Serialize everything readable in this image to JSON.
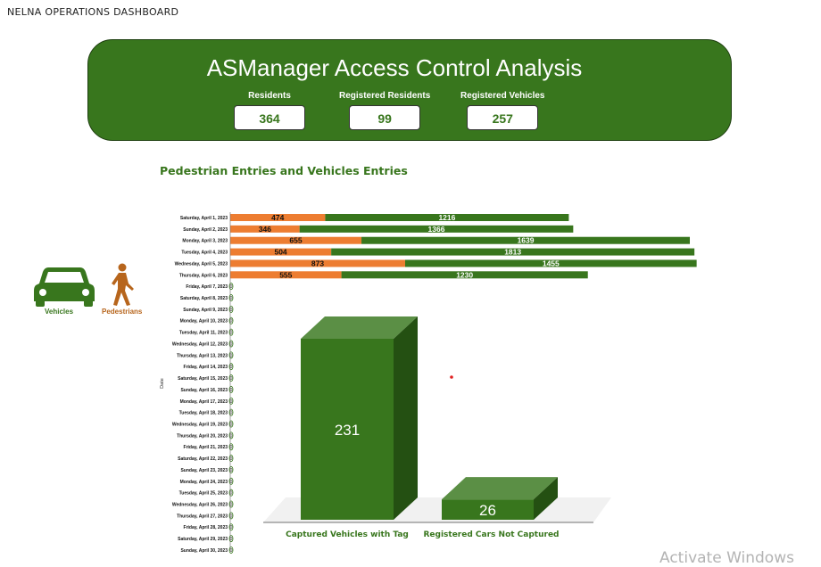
{
  "app_title": "NELNA OPERATIONS DASHBOARD",
  "banner": {
    "title": "ASManager Access Control Analysis",
    "kpis": [
      {
        "label": "Residents",
        "value": "364"
      },
      {
        "label": "Registered Residents",
        "value": "99"
      },
      {
        "label": "Registered Vehicles",
        "value": "257"
      }
    ]
  },
  "section_title": "Pedestrian Entries and Vehicles Entries",
  "legend": {
    "vehicles_label": "Vehicles",
    "pedestrians_label": "Pedestrians",
    "vehicles_icon": "car-icon",
    "pedestrians_icon": "walking-person-icon"
  },
  "colors": {
    "green": "#38761d",
    "orange": "#ed7d31",
    "dark_green": "#245012",
    "light_green": "#5b8f45",
    "pedestrian_brown": "#b7651c"
  },
  "chart_data": [
    {
      "type": "bar",
      "orientation": "horizontal",
      "stacked": true,
      "ylabel": "Date",
      "categories": [
        "Saturday, April 1, 2023",
        "Sunday, April 2, 2023",
        "Monday, April 3, 2023",
        "Tuesday, April 4, 2023",
        "Wednesday, April 5, 2023",
        "Thursday, April 6, 2023",
        "Friday, April 7, 2023",
        "Saturday, April 8, 2023",
        "Sunday, April 9, 2023",
        "Monday, April 10, 2023",
        "Tuesday, April 11, 2023",
        "Wednesday, April 12, 2023",
        "Thursday, April 13, 2023",
        "Friday, April 14, 2023",
        "Saturday, April 15, 2023",
        "Sunday, April 16, 2023",
        "Monday, April 17, 2023",
        "Tuesday, April 18, 2023",
        "Wednesday, April 19, 2023",
        "Thursday, April 20, 2023",
        "Friday, April 21, 2023",
        "Saturday, April 22, 2023",
        "Sunday, April 23, 2023",
        "Monday, April 24, 2023",
        "Tuesday, April 25, 2023",
        "Wednesday, April 26, 2023",
        "Thursday, April 27, 2023",
        "Friday, April 28, 2023",
        "Saturday, April 29, 2023",
        "Sunday, April 30, 2023"
      ],
      "series": [
        {
          "values": [
            474,
            346,
            655,
            504,
            873,
            555,
            0,
            0,
            0,
            0,
            0,
            0,
            0,
            0,
            0,
            0,
            0,
            0,
            0,
            0,
            0,
            0,
            0,
            0,
            0,
            0,
            0,
            0,
            0,
            0
          ]
        },
        {
          "values": [
            1216,
            1366,
            1639,
            1813,
            1455,
            1230,
            0,
            0,
            0,
            0,
            0,
            0,
            0,
            0,
            0,
            0,
            0,
            0,
            0,
            0,
            0,
            0,
            0,
            0,
            0,
            0,
            0,
            0,
            0,
            0
          ]
        }
      ],
      "zero_label": "0"
    },
    {
      "type": "bar",
      "style": "3d-column",
      "categories": [
        "Captured Vehicles with Tag",
        "Registered Cars Not Captured"
      ],
      "values": [
        231,
        26
      ]
    }
  ],
  "watermark": "Activate Windows"
}
